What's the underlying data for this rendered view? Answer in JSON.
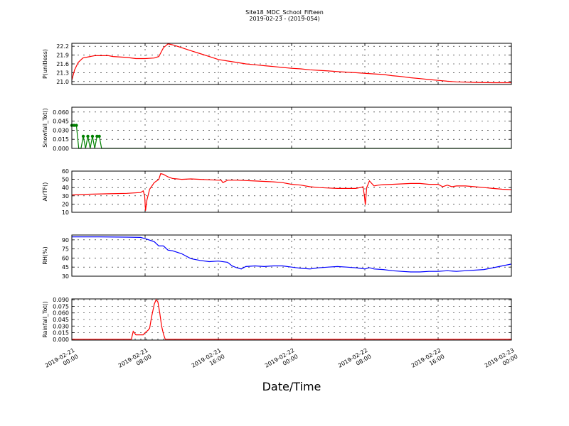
{
  "chart_data": {
    "type": "line",
    "title": "Site18_MDC_School_Fifteen",
    "subtitle": "2019-02-23 - (2019-054)",
    "xlabel": "Date/Time",
    "x_ticks": [
      {
        "day": "2019-02-21",
        "time": "00:00",
        "hours": 0
      },
      {
        "day": "2019-02-21",
        "time": "08:00",
        "hours": 8
      },
      {
        "day": "2019-02-21",
        "time": "16:00",
        "hours": 16
      },
      {
        "day": "2019-02-22",
        "time": "00:00",
        "hours": 24
      },
      {
        "day": "2019-02-22",
        "time": "08:00",
        "hours": 32
      },
      {
        "day": "2019-02-22",
        "time": "16:00",
        "hours": 40
      },
      {
        "day": "2019-02-23",
        "time": "00:00",
        "hours": 48
      }
    ],
    "xlim_hours": [
      0,
      48
    ],
    "grid": true,
    "panels": [
      {
        "ylabel": "P(unitless)",
        "ylim": [
          20.9,
          22.3
        ],
        "yticks": [
          "21.0",
          "21.3",
          "21.6",
          "21.9",
          "22.2"
        ],
        "ytick_values": [
          21.0,
          21.3,
          21.6,
          21.9,
          22.2
        ],
        "color": "#ff0000",
        "style": "line",
        "points": [
          [
            0,
            21.05
          ],
          [
            0.3,
            21.4
          ],
          [
            0.7,
            21.65
          ],
          [
            1.2,
            21.8
          ],
          [
            2,
            21.85
          ],
          [
            2.5,
            21.88
          ],
          [
            4,
            21.88
          ],
          [
            4.5,
            21.85
          ],
          [
            6,
            21.82
          ],
          [
            7,
            21.78
          ],
          [
            8,
            21.78
          ],
          [
            9,
            21.8
          ],
          [
            9.5,
            21.85
          ],
          [
            10,
            22.15
          ],
          [
            10.5,
            22.28
          ],
          [
            11,
            22.25
          ],
          [
            12,
            22.15
          ],
          [
            13,
            22.05
          ],
          [
            14,
            21.95
          ],
          [
            15,
            21.85
          ],
          [
            16,
            21.75
          ],
          [
            17,
            21.7
          ],
          [
            18,
            21.65
          ],
          [
            19,
            21.6
          ],
          [
            20,
            21.57
          ],
          [
            21,
            21.54
          ],
          [
            22,
            21.51
          ],
          [
            23,
            21.48
          ],
          [
            24,
            21.45
          ],
          [
            25,
            21.43
          ],
          [
            26,
            21.4
          ],
          [
            27,
            21.38
          ],
          [
            28,
            21.36
          ],
          [
            29,
            21.34
          ],
          [
            30,
            21.32
          ],
          [
            31,
            21.3
          ],
          [
            32,
            21.28
          ],
          [
            33,
            21.26
          ],
          [
            34,
            21.24
          ],
          [
            35,
            21.2
          ],
          [
            36,
            21.17
          ],
          [
            37,
            21.13
          ],
          [
            38,
            21.1
          ],
          [
            39,
            21.07
          ],
          [
            40,
            21.04
          ],
          [
            41,
            21.01
          ],
          [
            42,
            20.99
          ],
          [
            43,
            20.98
          ],
          [
            44,
            20.97
          ],
          [
            46,
            20.96
          ],
          [
            48,
            20.96
          ]
        ]
      },
      {
        "ylabel": "Snowfall_Tot()",
        "ylim": [
          0,
          0.068
        ],
        "yticks": [
          "0.000",
          "0.015",
          "0.030",
          "0.045",
          "0.060"
        ],
        "ytick_values": [
          0,
          0.015,
          0.03,
          0.045,
          0.06
        ],
        "color": "#008000",
        "style": "line-markers",
        "points": [
          [
            0,
            0.038
          ],
          [
            0.25,
            0.038
          ],
          [
            0.5,
            0.038
          ],
          [
            0.75,
            0
          ],
          [
            1,
            0
          ],
          [
            1.25,
            0.02
          ],
          [
            1.5,
            0
          ],
          [
            1.75,
            0.02
          ],
          [
            2,
            0
          ],
          [
            2.25,
            0.02
          ],
          [
            2.5,
            0
          ],
          [
            2.75,
            0.02
          ],
          [
            3,
            0.02
          ],
          [
            3.25,
            0
          ],
          [
            3.5,
            0
          ],
          [
            48,
            0
          ]
        ]
      },
      {
        "ylabel": "AirTF()",
        "ylim": [
          10,
          60
        ],
        "yticks": [
          "10",
          "20",
          "30",
          "40",
          "50",
          "60"
        ],
        "ytick_values": [
          10,
          20,
          30,
          40,
          50,
          60
        ],
        "color": "#ff0000",
        "style": "line",
        "points": [
          [
            0,
            31
          ],
          [
            2,
            32
          ],
          [
            4,
            32.5
          ],
          [
            6,
            33
          ],
          [
            7.5,
            34
          ],
          [
            7.8,
            36
          ],
          [
            7.95,
            30
          ],
          [
            8.05,
            12
          ],
          [
            8.2,
            25
          ],
          [
            8.5,
            38
          ],
          [
            9,
            46
          ],
          [
            9.5,
            50
          ],
          [
            9.7,
            57
          ],
          [
            10,
            56
          ],
          [
            10.5,
            53
          ],
          [
            11,
            51
          ],
          [
            12,
            50
          ],
          [
            13,
            50.5
          ],
          [
            14,
            50
          ],
          [
            15,
            49.5
          ],
          [
            16,
            49
          ],
          [
            16.3,
            49
          ],
          [
            16.5,
            46
          ],
          [
            17,
            49
          ],
          [
            18,
            49
          ],
          [
            19,
            48.5
          ],
          [
            20,
            48
          ],
          [
            21,
            47.5
          ],
          [
            22,
            47
          ],
          [
            23,
            46
          ],
          [
            24,
            44
          ],
          [
            25,
            43
          ],
          [
            26,
            41
          ],
          [
            27,
            40
          ],
          [
            28,
            39.5
          ],
          [
            29,
            39
          ],
          [
            30,
            39
          ],
          [
            31,
            39
          ],
          [
            31.5,
            40
          ],
          [
            31.8,
            41
          ],
          [
            31.95,
            30
          ],
          [
            32.05,
            19
          ],
          [
            32.2,
            40
          ],
          [
            32.5,
            48
          ],
          [
            33,
            42
          ],
          [
            33.5,
            43
          ],
          [
            34,
            43.5
          ],
          [
            35,
            44
          ],
          [
            36,
            44.5
          ],
          [
            37,
            45
          ],
          [
            38,
            45
          ],
          [
            39,
            44
          ],
          [
            40,
            44
          ],
          [
            40.5,
            41
          ],
          [
            41,
            43
          ],
          [
            41.5,
            41
          ],
          [
            42,
            42
          ],
          [
            43,
            42
          ],
          [
            44,
            41
          ],
          [
            45,
            40
          ],
          [
            46,
            39
          ],
          [
            47,
            38
          ],
          [
            48,
            37.5
          ]
        ]
      },
      {
        "ylabel": "RH(%)",
        "ylim": [
          30,
          98
        ],
        "yticks": [
          "30",
          "45",
          "60",
          "75",
          "90"
        ],
        "ytick_values": [
          30,
          45,
          60,
          75,
          90
        ],
        "color": "#0000ff",
        "style": "line",
        "points": [
          [
            0,
            95
          ],
          [
            3,
            95
          ],
          [
            6,
            94.5
          ],
          [
            7.5,
            94
          ],
          [
            8,
            92
          ],
          [
            9,
            87
          ],
          [
            9.5,
            80
          ],
          [
            10,
            80
          ],
          [
            10.5,
            73
          ],
          [
            11,
            72
          ],
          [
            12,
            67
          ],
          [
            13,
            59
          ],
          [
            14,
            56
          ],
          [
            15,
            54
          ],
          [
            16,
            55
          ],
          [
            17,
            53
          ],
          [
            17.5,
            47
          ],
          [
            18,
            44
          ],
          [
            18.5,
            42
          ],
          [
            19,
            46
          ],
          [
            20,
            47
          ],
          [
            21,
            46
          ],
          [
            22,
            47
          ],
          [
            23,
            47
          ],
          [
            24,
            45
          ],
          [
            25,
            43
          ],
          [
            26,
            42
          ],
          [
            27,
            44
          ],
          [
            28,
            45
          ],
          [
            29,
            46
          ],
          [
            30,
            45
          ],
          [
            31,
            44
          ],
          [
            32,
            42
          ],
          [
            32.5,
            44
          ],
          [
            33,
            42
          ],
          [
            34,
            41
          ],
          [
            35,
            39
          ],
          [
            36,
            38
          ],
          [
            37,
            37
          ],
          [
            38,
            37
          ],
          [
            39,
            38
          ],
          [
            40,
            38
          ],
          [
            41,
            39
          ],
          [
            42,
            38
          ],
          [
            43,
            39
          ],
          [
            44,
            40
          ],
          [
            45,
            41
          ],
          [
            46,
            44
          ],
          [
            47,
            47
          ],
          [
            48,
            50
          ]
        ]
      },
      {
        "ylabel": "Rainfall_Tot()",
        "ylim": [
          -0.002,
          0.092
        ],
        "yticks": [
          "0.000",
          "0.015",
          "0.030",
          "0.045",
          "0.060",
          "0.075",
          "0.090"
        ],
        "ytick_values": [
          0,
          0.015,
          0.03,
          0.045,
          0.06,
          0.075,
          0.09
        ],
        "color": "#ff0000",
        "style": "line",
        "points": [
          [
            0,
            0
          ],
          [
            6.5,
            0
          ],
          [
            6.7,
            0.018
          ],
          [
            7,
            0.01
          ],
          [
            7.5,
            0.01
          ],
          [
            7.8,
            0.01
          ],
          [
            8,
            0.015
          ],
          [
            8.3,
            0.02
          ],
          [
            8.5,
            0.025
          ],
          [
            8.7,
            0.05
          ],
          [
            9,
            0.08
          ],
          [
            9.2,
            0.09
          ],
          [
            9.4,
            0.085
          ],
          [
            9.6,
            0.06
          ],
          [
            9.8,
            0.03
          ],
          [
            10,
            0.012
          ],
          [
            10.2,
            0
          ],
          [
            48,
            0
          ]
        ]
      }
    ]
  }
}
